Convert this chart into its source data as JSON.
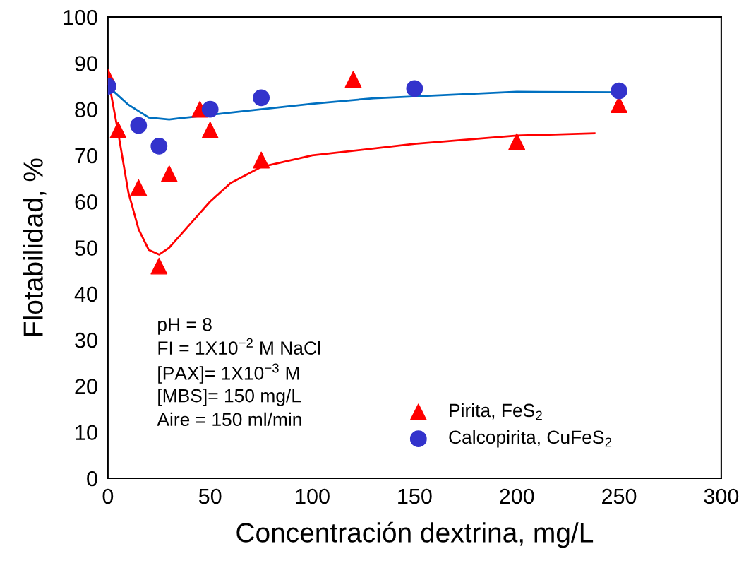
{
  "chart_data": {
    "type": "scatter",
    "xlabel": "Concentración dextrina, mg/L",
    "ylabel": "Flotabilidad, %",
    "xlim": [
      0,
      300
    ],
    "xticks": [
      0,
      50,
      100,
      150,
      200,
      250,
      300
    ],
    "ylim": [
      0,
      100
    ],
    "yticks": [
      0,
      10,
      20,
      30,
      40,
      50,
      60,
      70,
      80,
      90,
      100
    ],
    "grid": false,
    "legend": "bottom right",
    "series": [
      {
        "type": "line",
        "color": "#ff0000",
        "marker": "none",
        "x": [
          0,
          5,
          10,
          15,
          20,
          25,
          30,
          40,
          50,
          60,
          75,
          100,
          150,
          200,
          238
        ],
        "values": [
          87,
          75,
          62,
          54,
          49.5,
          48.5,
          50,
          55,
          60,
          64,
          67.5,
          70,
          72.5,
          74.3,
          74.8
        ]
      },
      {
        "type": "line",
        "color": "#0070c0",
        "marker": "none",
        "x": [
          0,
          10,
          20,
          30,
          40,
          60,
          75,
          100,
          130,
          200,
          250
        ],
        "values": [
          85,
          81,
          78.2,
          77.8,
          78.3,
          79.3,
          80,
          81.2,
          82.4,
          83.8,
          83.7
        ]
      },
      {
        "name": "Pirita, FeS$_{2}$",
        "color": "#ff0000",
        "marker": "triangle",
        "x": [
          0,
          5,
          15,
          25,
          30,
          45,
          50,
          75,
          120,
          200,
          250
        ],
        "values": [
          87,
          75.5,
          63,
          46,
          66,
          80,
          75.5,
          69,
          86.5,
          73,
          81
        ]
      },
      {
        "name": "Calcopirita, CuFeS$_{2}$",
        "color": "#3333cc",
        "marker": "circle",
        "x": [
          0,
          15,
          25,
          50,
          75,
          150,
          250
        ],
        "values": [
          85,
          76.5,
          72,
          80,
          82.5,
          84.5,
          84
        ]
      }
    ],
    "annotations": [
      "pH = 8",
      "FI = 1X10$^{−2}$ M NaCl",
      "[PAX]= 1X10$^{−3}$ M",
      "[MBS]= 150 mg/L",
      "Aire = 150 ml/min"
    ]
  }
}
